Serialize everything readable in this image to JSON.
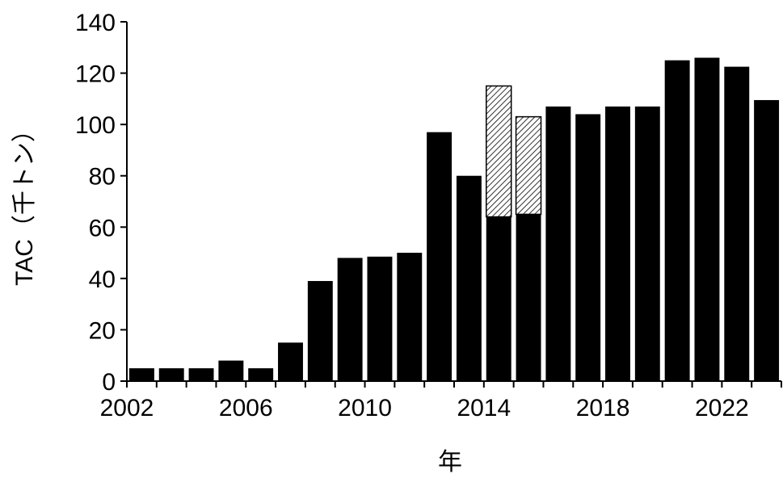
{
  "chart_data": {
    "type": "bar",
    "xlabel": "年",
    "ylabel": "TAC（千トン）",
    "ylim": [
      0,
      140
    ],
    "y_ticks": [
      0,
      20,
      40,
      60,
      80,
      100,
      120,
      140
    ],
    "x_tick_labels": [
      "2002",
      "2006",
      "2010",
      "2014",
      "2018",
      "2022"
    ],
    "grid": false,
    "legend": "none",
    "bar_color": "#000000",
    "hatch_color": "#000000",
    "categories": [
      "2002",
      "2003",
      "2004",
      "2005",
      "2006",
      "2007",
      "2008",
      "2009",
      "2010",
      "2011",
      "2012",
      "2013",
      "2014",
      "2015",
      "2016",
      "2017",
      "2018",
      "2019",
      "2020",
      "2021",
      "2022",
      "2023"
    ],
    "series": [
      {
        "values": [
          5,
          5,
          5,
          8,
          5,
          15,
          39,
          48,
          48.5,
          50,
          97,
          80,
          64,
          65,
          107,
          104,
          107,
          107,
          125,
          126,
          122.5,
          109.5
        ]
      },
      {
        "pattern": "diagonal-hatch",
        "values": [
          0,
          0,
          0,
          0,
          0,
          0,
          0,
          0,
          0,
          0,
          0,
          0,
          51,
          38,
          0,
          0,
          0,
          0,
          0,
          0,
          0,
          0
        ]
      }
    ]
  }
}
